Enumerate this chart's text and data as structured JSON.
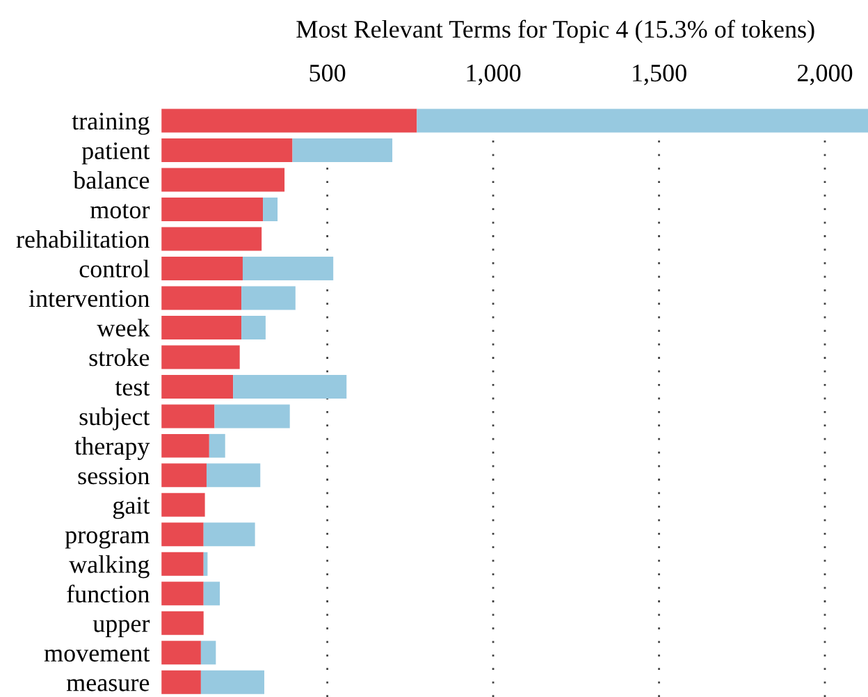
{
  "chart_data": {
    "type": "bar",
    "orientation": "horizontal",
    "title": "Most Relevant Terms for Topic 4 (15.3% of tokens)",
    "categories": [
      "training",
      "patient",
      "balance",
      "motor",
      "rehabilitation",
      "control",
      "intervention",
      "week",
      "stroke",
      "test",
      "subject",
      "therapy",
      "session",
      "gait",
      "program",
      "walking",
      "function",
      "upper",
      "movement",
      "measure"
    ],
    "series": [
      {
        "color": "#e84a50",
        "values": [
          770,
          395,
          371,
          306,
          302,
          245,
          241,
          241,
          236,
          216,
          160,
          144,
          136,
          131,
          127,
          127,
          127,
          127,
          119,
          119
        ]
      },
      {
        "color": "#97c9e0",
        "values": [
          1360,
          301,
          null,
          44,
          null,
          273,
          163,
          73,
          null,
          342,
          227,
          48,
          162,
          null,
          155,
          12,
          49,
          null,
          45,
          191
        ]
      }
    ],
    "stacked": true,
    "xlim": [
      0,
      2130
    ],
    "xticks": [
      {
        "value": 500,
        "label": "500"
      },
      {
        "value": 1000,
        "label": "1,000"
      },
      {
        "value": 1500,
        "label": "1,500"
      },
      {
        "value": 2000,
        "label": "2,000"
      }
    ],
    "grid": "x",
    "legend": false
  }
}
